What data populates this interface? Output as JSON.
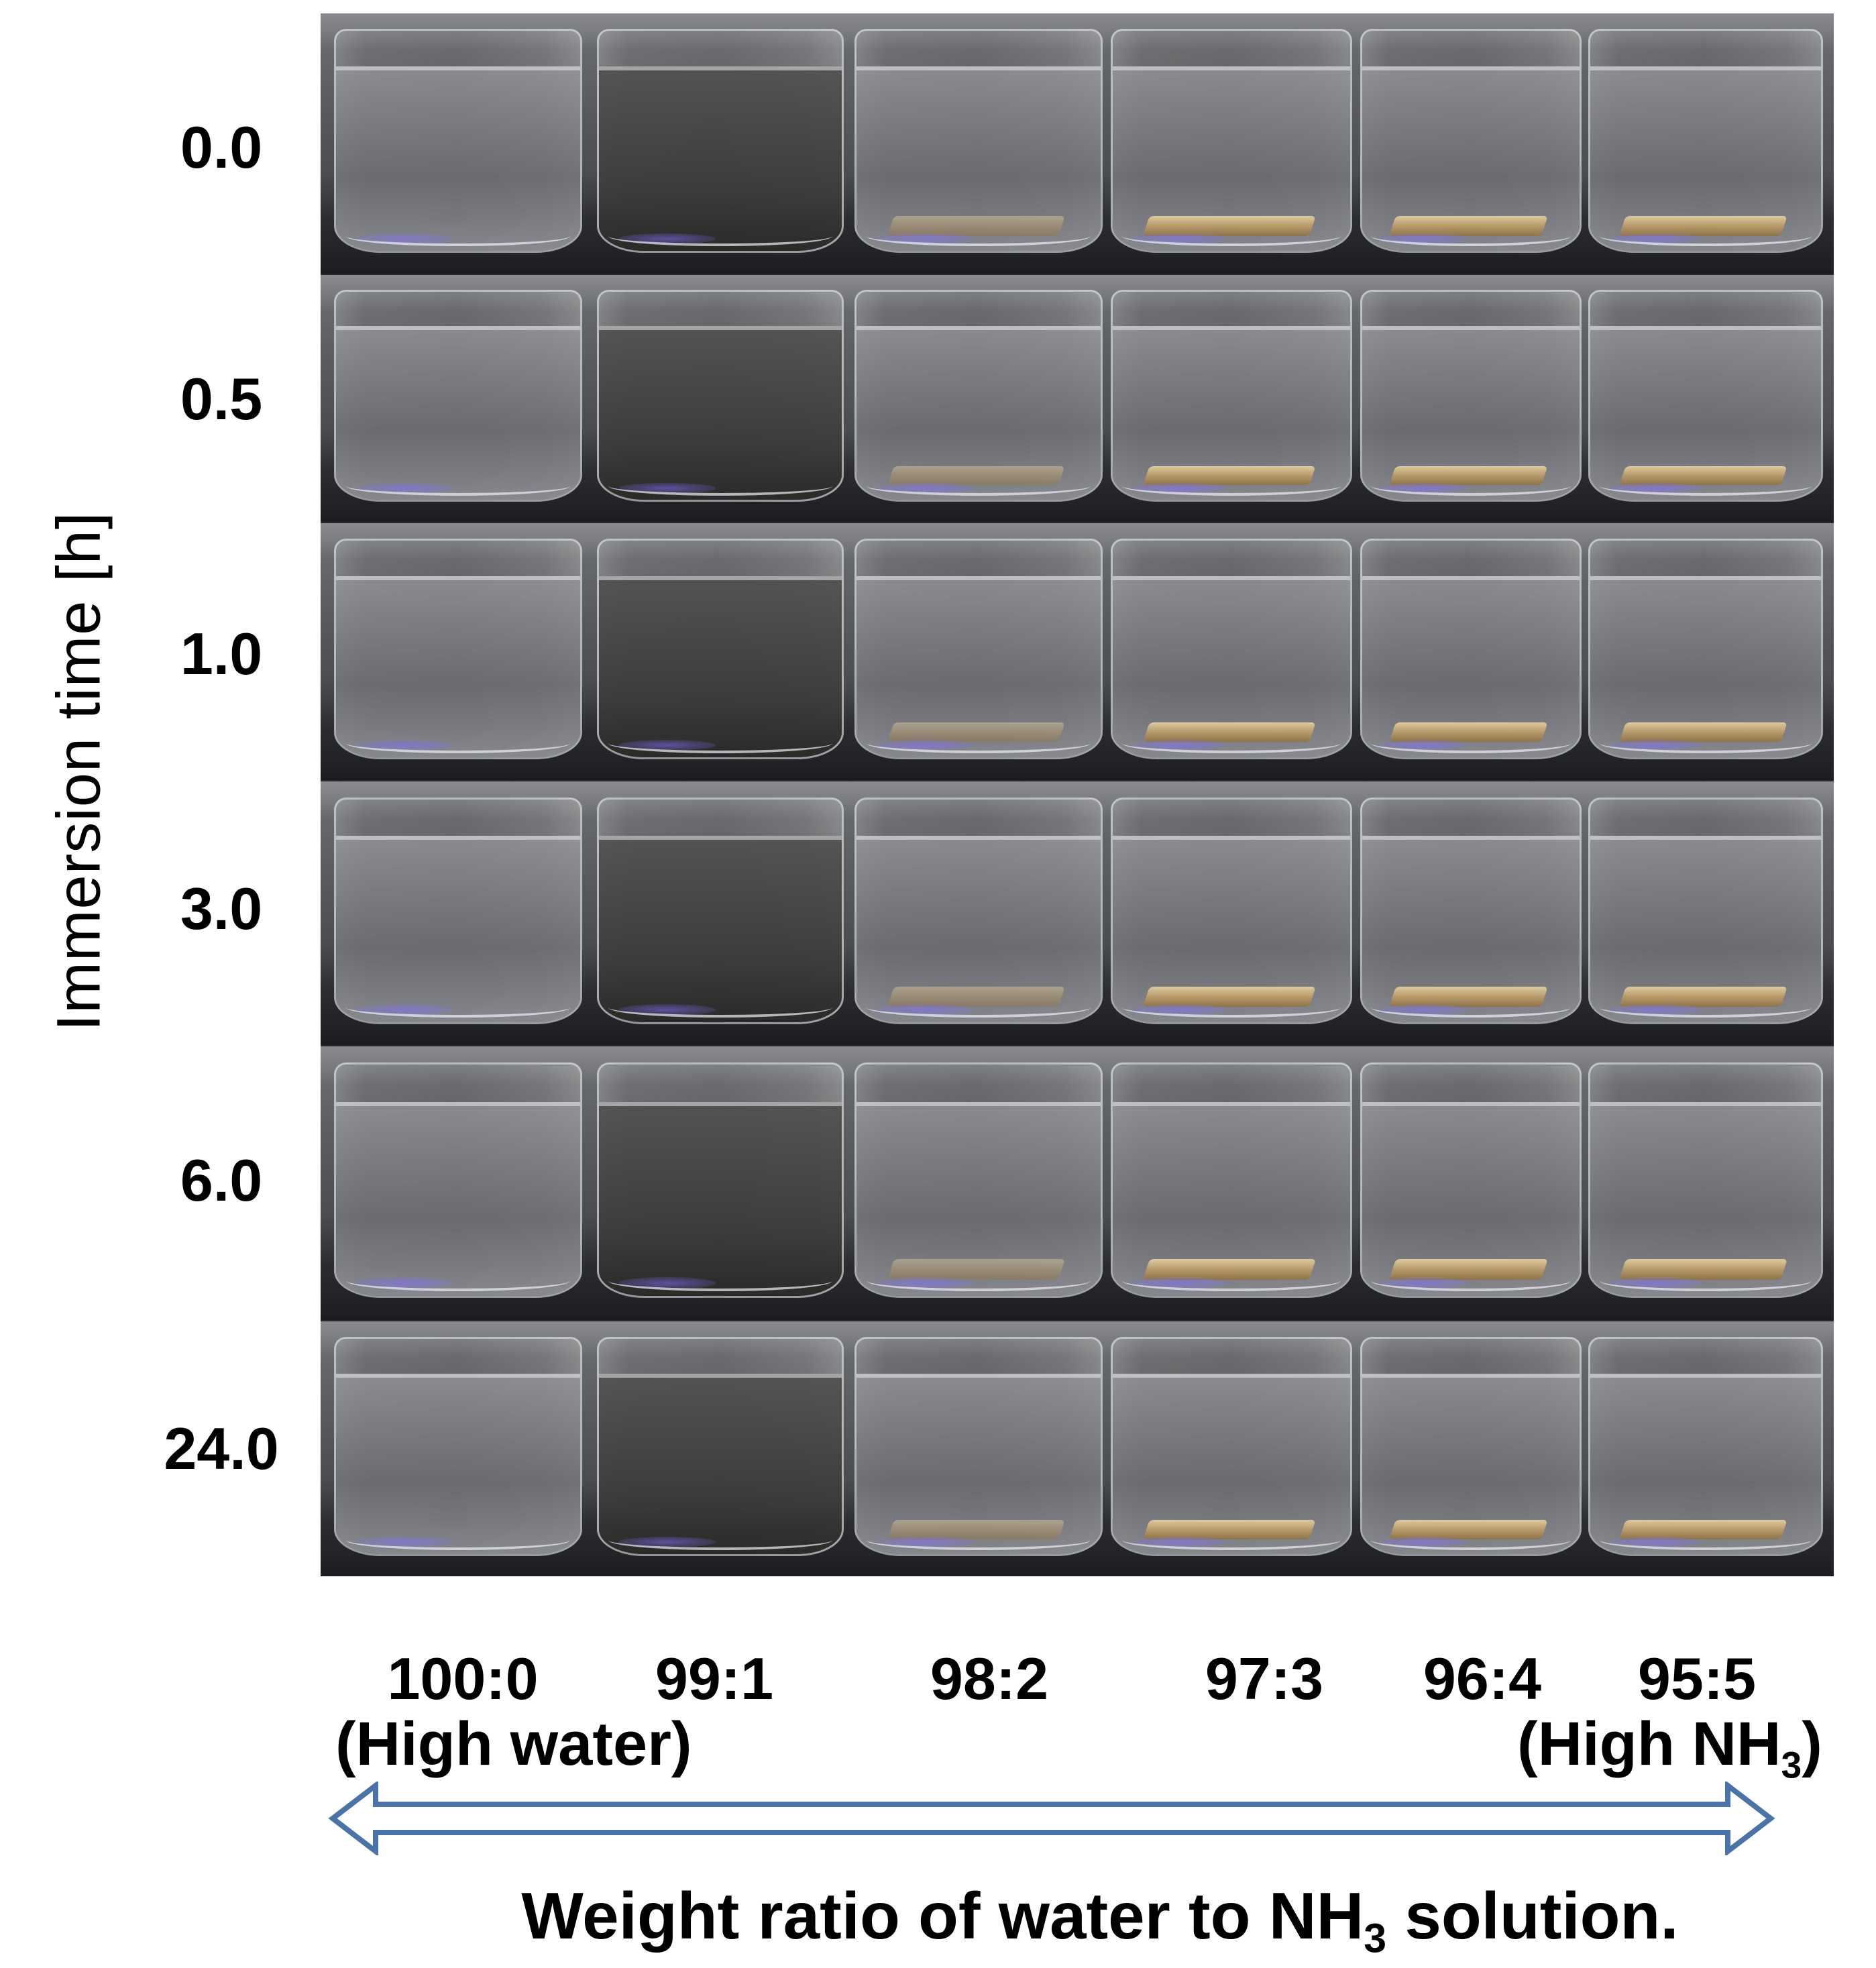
{
  "y_axis": {
    "title": "Immersion time [h]",
    "rows": [
      "0.0",
      "0.5",
      "1.0",
      "3.0",
      "6.0",
      "24.0"
    ]
  },
  "x_axis": {
    "ratios": [
      "100:0",
      "99:1",
      "98:2",
      "97:3",
      "96:4",
      "95:5"
    ],
    "left_note": "(High water)",
    "right_note_prefix": "(High NH",
    "right_note_sub": "3",
    "right_note_suffix": ")",
    "title_prefix": "Weight ratio of water to NH",
    "title_sub": "3",
    "title_suffix": " solution."
  },
  "colors": {
    "arrow_stroke": "#4a74a8",
    "film": "#c9a86e",
    "dark_liquid": "#3c3a38"
  }
}
